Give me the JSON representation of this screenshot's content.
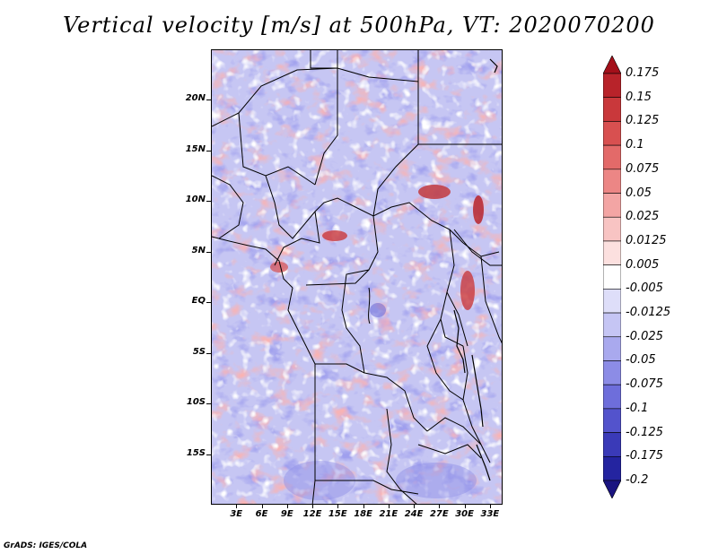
{
  "title": "Vertical velocity [m/s] at 500hPa, VT: 2020070200",
  "credit": "GrADS: IGES/COLA",
  "map": {
    "lat_labels": [
      "20N",
      "15N",
      "10N",
      "5N",
      "EQ",
      "5S",
      "10S",
      "15S"
    ],
    "lon_labels": [
      "3E",
      "6E",
      "9E",
      "12E",
      "15E",
      "18E",
      "21E",
      "24E",
      "27E",
      "30E",
      "33E"
    ],
    "lat_range": [
      -20,
      25
    ],
    "lon_range": [
      0,
      34.5
    ]
  },
  "colorbar": {
    "labels": [
      "0.175",
      "0.15",
      "0.125",
      "0.1",
      "0.075",
      "0.05",
      "0.025",
      "0.0125",
      "0.005",
      "-0.005",
      "-0.0125",
      "-0.025",
      "-0.05",
      "-0.075",
      "-0.1",
      "-0.125",
      "-0.175",
      "-0.2"
    ],
    "colors": [
      "#a3101a",
      "#b8232a",
      "#c9383b",
      "#d85050",
      "#e36a69",
      "#ec8685",
      "#f3a5a4",
      "#f8c4c3",
      "#fce0df",
      "#ffffff",
      "#dedef9",
      "#c5c5f4",
      "#a9a9ee",
      "#8c8ce6",
      "#6e6edb",
      "#5353cc",
      "#3a3ab8",
      "#2424a0",
      "#1a1480"
    ]
  }
}
